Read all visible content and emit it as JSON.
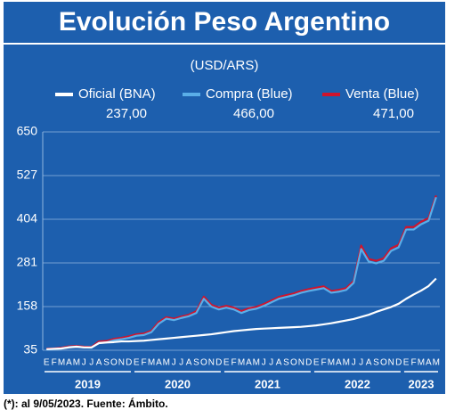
{
  "chart_data": {
    "type": "line",
    "title": "Evolución Peso Argentino",
    "subtitle": "(USD/ARS)",
    "footnote": "(*): al 9/05/2023. Fuente: Ámbito.",
    "categories": [
      "E",
      "F",
      "M",
      "A",
      "M",
      "J",
      "J",
      "A",
      "S",
      "O",
      "N",
      "D",
      "E",
      "F",
      "M",
      "A",
      "M",
      "J",
      "J",
      "A",
      "S",
      "O",
      "N",
      "D",
      "E",
      "F",
      "M",
      "A",
      "M",
      "J",
      "J",
      "A",
      "S",
      "O",
      "N",
      "D",
      "E",
      "F",
      "M",
      "A",
      "M",
      "J",
      "J",
      "A",
      "S",
      "O",
      "N",
      "D",
      "E",
      "F",
      "M",
      "A",
      "M"
    ],
    "years": [
      "2019",
      "2020",
      "2021",
      "2022",
      "2023"
    ],
    "ylim": [
      35,
      650
    ],
    "yticks": [
      35,
      158,
      281,
      404,
      527,
      650
    ],
    "grid": true,
    "series": [
      {
        "name": "Oficial (BNA)",
        "legend_value": "237,00",
        "color": "#ffffff",
        "values": [
          38,
          39,
          40,
          43,
          45,
          43,
          43,
          55,
          57,
          58,
          60,
          60,
          61,
          62,
          64,
          66,
          68,
          70,
          72,
          74,
          76,
          78,
          80,
          83,
          86,
          89,
          91,
          93,
          95,
          96,
          97,
          98,
          99,
          100,
          101,
          103,
          105,
          108,
          111,
          115,
          119,
          123,
          129,
          135,
          143,
          150,
          157,
          166,
          180,
          192,
          203,
          216,
          237
        ]
      },
      {
        "name": "Compra (Blue)",
        "legend_value": "466,00",
        "color": "#5aaee8",
        "values": [
          37,
          38,
          40,
          44,
          45,
          43,
          42,
          56,
          57,
          63,
          66,
          70,
          76,
          78,
          86,
          110,
          124,
          120,
          126,
          131,
          140,
          180,
          158,
          150,
          155,
          150,
          140,
          148,
          152,
          160,
          170,
          180,
          185,
          190,
          197,
          202,
          206,
          210,
          197,
          200,
          205,
          225,
          320,
          285,
          280,
          287,
          315,
          325,
          375,
          375,
          390,
          400,
          466
        ]
      },
      {
        "name": "Venta (Blue)",
        "legend_value": "471,00",
        "color": "#d0142c",
        "values": [
          39,
          40,
          42,
          46,
          47,
          45,
          44,
          60,
          61,
          67,
          70,
          74,
          80,
          82,
          90,
          115,
          128,
          124,
          130,
          135,
          145,
          186,
          163,
          155,
          160,
          155,
          145,
          153,
          157,
          165,
          175,
          185,
          190,
          195,
          202,
          207,
          211,
          215,
          202,
          205,
          210,
          230,
          330,
          292,
          287,
          294,
          322,
          332,
          382,
          382,
          397,
          407,
          471
        ]
      }
    ]
  }
}
